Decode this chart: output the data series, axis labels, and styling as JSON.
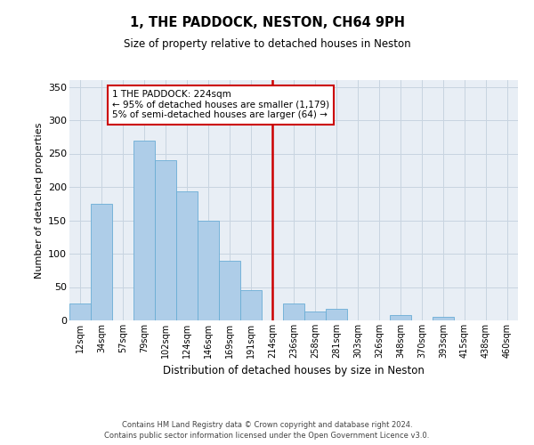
{
  "title": "1, THE PADDOCK, NESTON, CH64 9PH",
  "subtitle": "Size of property relative to detached houses in Neston",
  "xlabel": "Distribution of detached houses by size in Neston",
  "ylabel": "Number of detached properties",
  "footnote1": "Contains HM Land Registry data © Crown copyright and database right 2024.",
  "footnote2": "Contains public sector information licensed under the Open Government Licence v3.0.",
  "bin_labels": [
    "12sqm",
    "34sqm",
    "57sqm",
    "79sqm",
    "102sqm",
    "124sqm",
    "146sqm",
    "169sqm",
    "191sqm",
    "214sqm",
    "236sqm",
    "258sqm",
    "281sqm",
    "303sqm",
    "326sqm",
    "348sqm",
    "370sqm",
    "393sqm",
    "415sqm",
    "438sqm",
    "460sqm"
  ],
  "bar_values": [
    25,
    175,
    0,
    270,
    240,
    193,
    150,
    90,
    45,
    0,
    25,
    14,
    17,
    0,
    0,
    8,
    0,
    5,
    0,
    0,
    0
  ],
  "bar_color": "#aecde8",
  "bar_edge_color": "#6aadd5",
  "vline_x": 9.0,
  "vline_color": "#cc0000",
  "annotation_title": "1 THE PADDOCK: 224sqm",
  "annotation_line1": "← 95% of detached houses are smaller (1,179)",
  "annotation_line2": "5% of semi-detached houses are larger (64) →",
  "annotation_box_color": "#ffffff",
  "annotation_box_edge": "#cc0000",
  "ylim": [
    0,
    360
  ],
  "yticks": [
    0,
    50,
    100,
    150,
    200,
    250,
    300,
    350
  ],
  "plot_bg_color": "#e8eef5",
  "background_color": "#ffffff",
  "grid_color": "#c8d4e0"
}
